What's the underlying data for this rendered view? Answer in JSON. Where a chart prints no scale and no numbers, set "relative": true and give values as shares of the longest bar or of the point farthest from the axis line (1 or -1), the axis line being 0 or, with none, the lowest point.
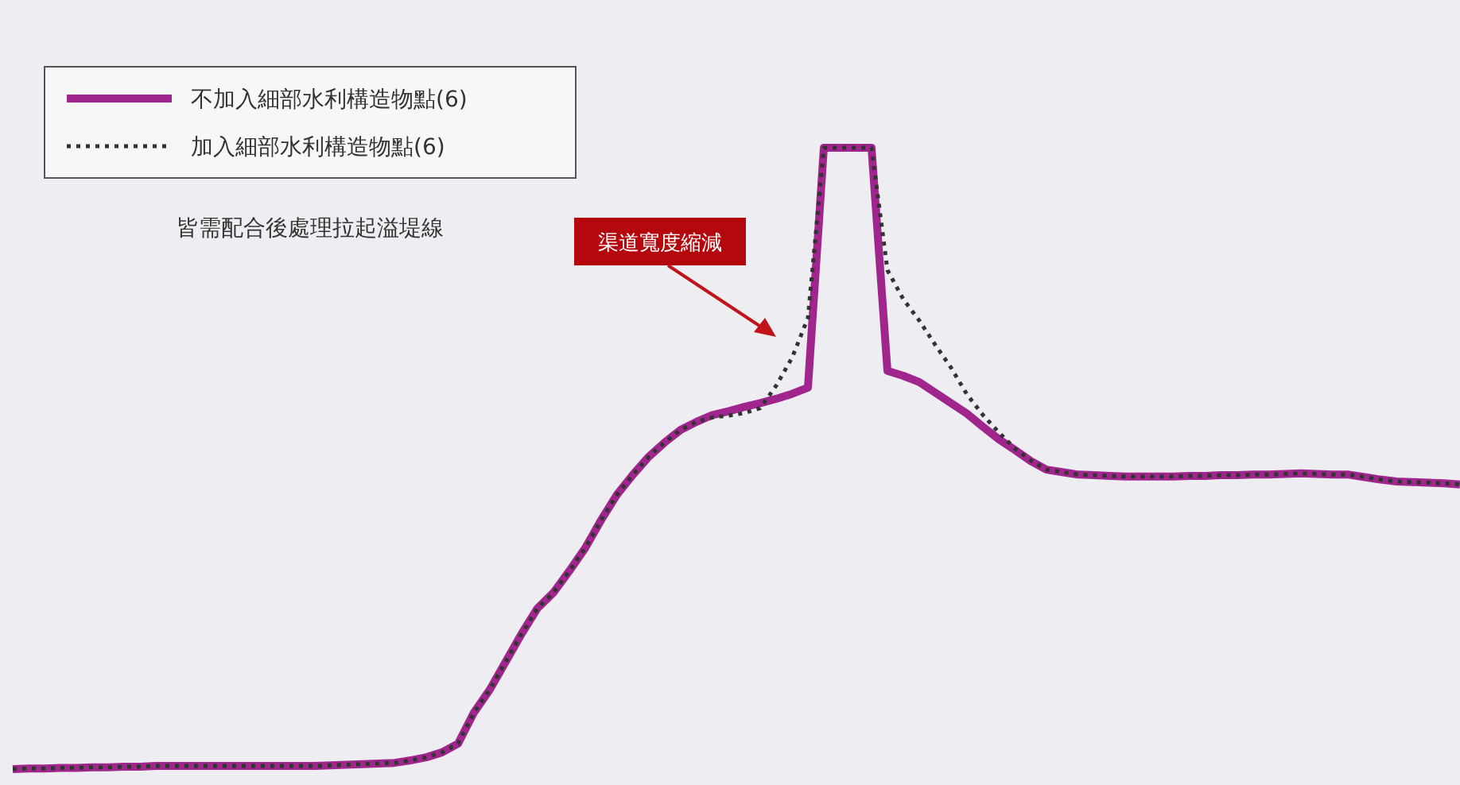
{
  "chart_data": {
    "type": "line",
    "relative": true,
    "legend": "top left",
    "annotations": [
      "皆需配合後處理拉起溢堤線",
      "渠道寬度縮減"
    ],
    "categories": [
      null,
      null,
      null,
      null,
      null,
      null,
      null,
      null,
      null,
      null,
      null,
      null,
      null,
      null,
      null,
      null,
      null,
      null,
      null,
      null,
      null,
      null,
      null,
      null,
      null,
      null,
      null,
      null,
      null,
      null,
      null,
      null,
      null,
      null,
      null,
      null,
      null,
      null,
      null,
      null,
      null,
      null,
      null,
      null,
      null,
      null,
      null,
      null,
      null,
      null,
      null,
      null,
      null,
      null,
      null,
      null,
      null,
      null,
      null,
      null,
      null,
      null,
      null,
      null,
      null,
      null,
      null,
      null,
      null,
      null,
      null,
      null,
      null,
      null,
      null,
      null,
      null,
      null,
      null,
      null,
      null,
      null,
      null,
      null,
      null,
      null,
      null,
      null,
      null,
      null,
      null,
      null
    ],
    "series": [
      {
        "name": "不加入細部水利構造物點(6)",
        "color": "#a0268e",
        "line_style": "solid",
        "values": [
          0,
          0.001,
          0.001,
          0.002,
          0.002,
          0.003,
          0.003,
          0.004,
          0.004,
          0.005,
          0.005,
          0.005,
          0.005,
          0.005,
          0.005,
          0.005,
          0.005,
          0.005,
          0.005,
          0.005,
          0.006,
          0.007,
          0.008,
          0.009,
          0.01,
          0.014,
          0.019,
          0.027,
          0.041,
          0.091,
          0.128,
          0.173,
          0.218,
          0.259,
          0.284,
          0.319,
          0.356,
          0.401,
          0.442,
          0.474,
          0.503,
          0.526,
          0.546,
          0.559,
          0.57,
          0.576,
          0.583,
          0.589,
          0.596,
          0.604,
          0.614,
          1,
          1,
          1,
          1,
          0.641,
          0.633,
          0.623,
          0.606,
          0.589,
          0.572,
          0.551,
          0.531,
          0.514,
          0.496,
          0.482,
          0.478,
          0.474,
          0.473,
          0.472,
          0.471,
          0.471,
          0.471,
          0.471,
          0.472,
          0.472,
          0.473,
          0.473,
          0.474,
          0.474,
          0.475,
          0.476,
          0.475,
          0.474,
          0.474,
          0.47,
          0.466,
          0.463,
          0.462,
          0.461,
          0.46,
          0.458
        ]
      },
      {
        "name": "加入細部水利構造物點(6)",
        "color": "#333333",
        "line_style": "dotted",
        "values": [
          0,
          0.001,
          0.001,
          0.002,
          0.002,
          0.003,
          0.003,
          0.004,
          0.004,
          0.005,
          0.005,
          0.005,
          0.005,
          0.005,
          0.005,
          0.005,
          0.005,
          0.005,
          0.005,
          0.005,
          0.006,
          0.007,
          0.008,
          0.009,
          0.01,
          0.014,
          0.019,
          0.027,
          0.041,
          0.091,
          0.128,
          0.173,
          0.218,
          0.259,
          0.284,
          0.319,
          0.356,
          0.401,
          0.442,
          0.474,
          0.503,
          0.526,
          0.546,
          0.559,
          0.566,
          0.569,
          0.573,
          0.581,
          0.617,
          0.662,
          0.726,
          1,
          1,
          1,
          1,
          0.803,
          0.756,
          0.722,
          0.683,
          0.646,
          0.603,
          0.57,
          0.542,
          0.516,
          0.497,
          0.482,
          0.478,
          0.474,
          0.473,
          0.472,
          0.471,
          0.471,
          0.471,
          0.471,
          0.472,
          0.472,
          0.473,
          0.473,
          0.474,
          0.474,
          0.475,
          0.476,
          0.475,
          0.474,
          0.474,
          0.47,
          0.466,
          0.463,
          0.462,
          0.461,
          0.46,
          0.458
        ]
      }
    ]
  }
}
